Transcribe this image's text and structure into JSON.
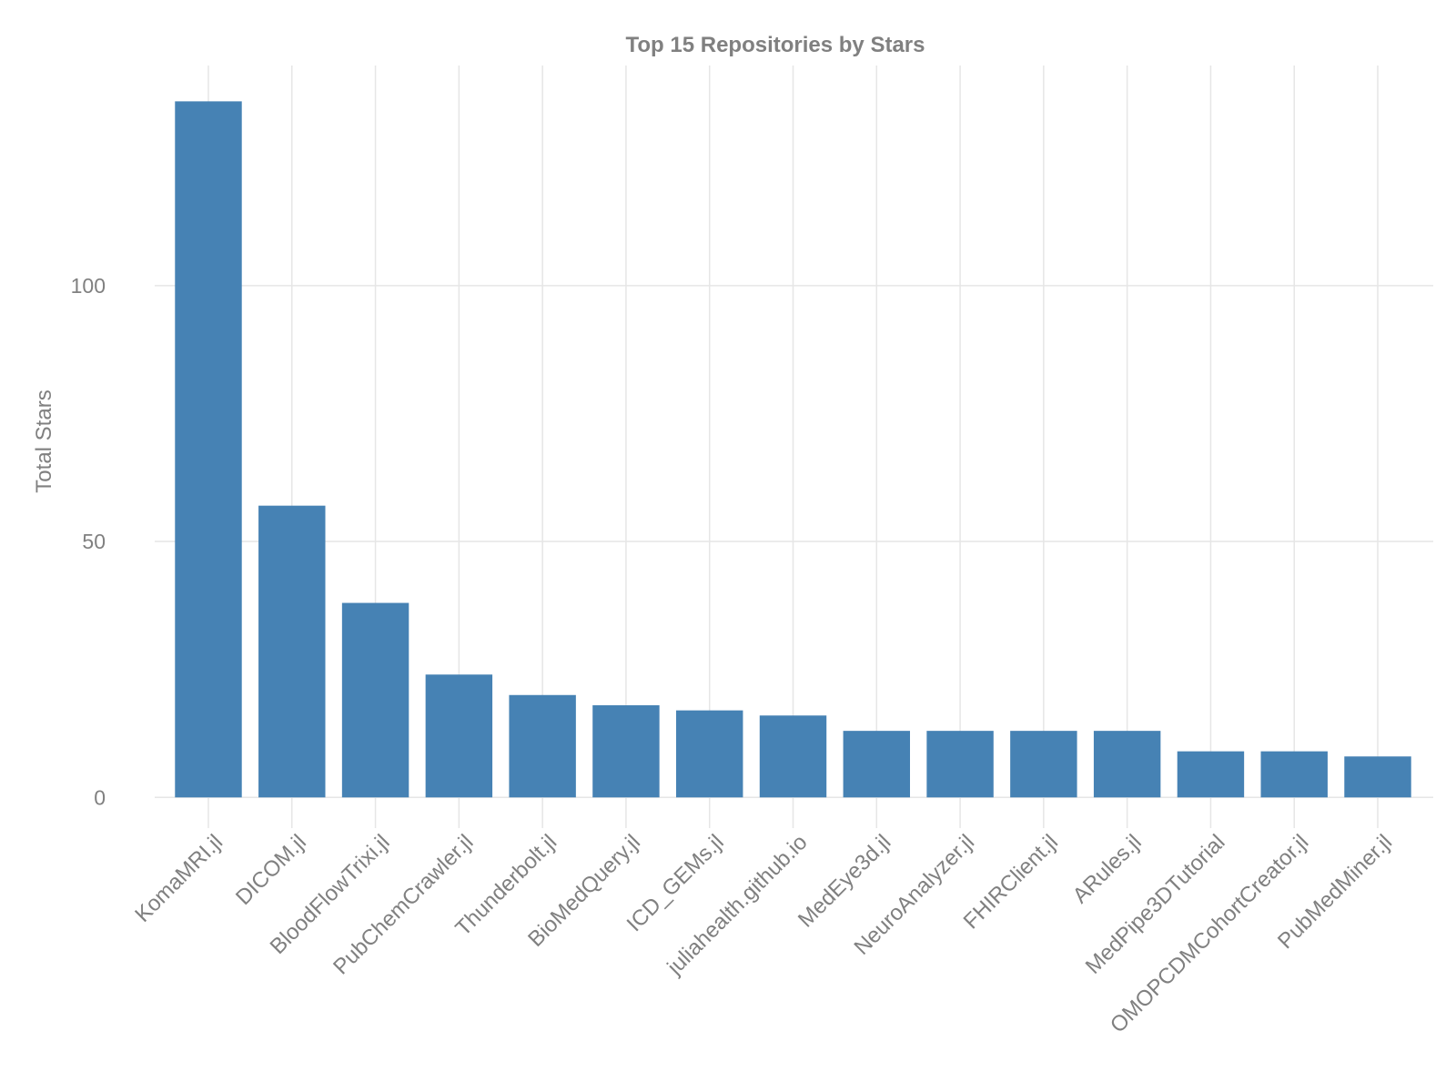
{
  "chart_data": {
    "type": "bar",
    "title": "Top 15 Repositories by Stars",
    "xlabel": "",
    "ylabel": "Total Stars",
    "categories": [
      "KomaMRI.jl",
      "DICOM.jl",
      "BloodFlowTrixi.jl",
      "PubChemCrawler.jl",
      "Thunderbolt.jl",
      "BioMedQuery.jl",
      "ICD_GEMs.jl",
      "juliahealth.github.io",
      "MedEye3d.jl",
      "NeuroAnalyzer.jl",
      "FHIRClient.jl",
      "ARules.jl",
      "MedPipe3DTutorial",
      "OMOPCDMCohortCreator.jl",
      "PubMedMiner.jl"
    ],
    "values": [
      136,
      57,
      38,
      24,
      20,
      18,
      17,
      16,
      13,
      13,
      13,
      13,
      9,
      9,
      8
    ],
    "ylim": [
      -6,
      143
    ],
    "yticks": [
      0,
      50,
      100
    ],
    "ytick_labels": [
      "0",
      "50",
      "100"
    ],
    "grid": true,
    "bar_color": "#4682b4",
    "legend": "none"
  }
}
